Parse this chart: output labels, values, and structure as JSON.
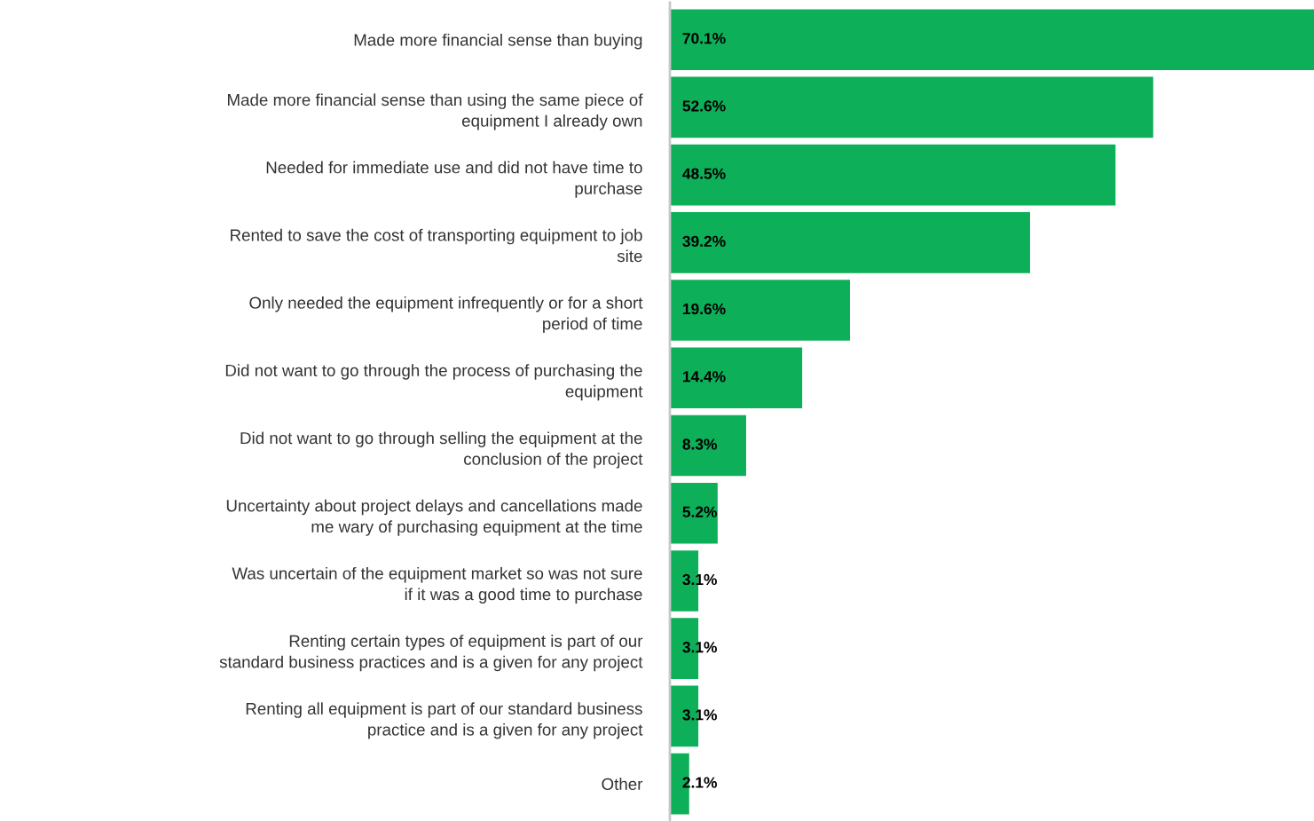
{
  "chart_data": {
    "type": "bar",
    "orientation": "horizontal",
    "categories": [
      "Made more financial sense than buying",
      "Made more financial sense than using the same piece of\nequipment I already own",
      "Needed for immediate use and did not have time to\npurchase",
      "Rented to save the cost of transporting equipment to job\nsite",
      "Only needed the equipment infrequently or for a short\nperiod of time",
      "Did not want to go through the process of purchasing the\nequipment",
      "Did not want to go through selling the equipment at the\nconclusion of the project",
      "Uncertainty about project delays and cancellations made\nme wary of purchasing equipment at the time",
      "Was uncertain of the equipment market so was not sure\nif it was a good time to purchase",
      "Renting certain types of equipment is part of our\nstandard business practices and is a given for any project",
      "Renting all equipment is part of our standard business\npractice and is a given for any project",
      "Other"
    ],
    "values": [
      70.1,
      52.6,
      48.5,
      39.2,
      19.6,
      14.4,
      8.3,
      5.2,
      3.1,
      3.1,
      3.1,
      2.1
    ],
    "value_labels": [
      "70.1%",
      "52.6%",
      "48.5%",
      "39.2%",
      "19.6%",
      "14.4%",
      "8.3%",
      "5.2%",
      "3.1%",
      "3.1%",
      "3.1%",
      "2.1%"
    ],
    "color": "#0daf58",
    "xlim": [
      0,
      70.1
    ],
    "tick_labels": "y",
    "grid": false,
    "legend": false
  }
}
